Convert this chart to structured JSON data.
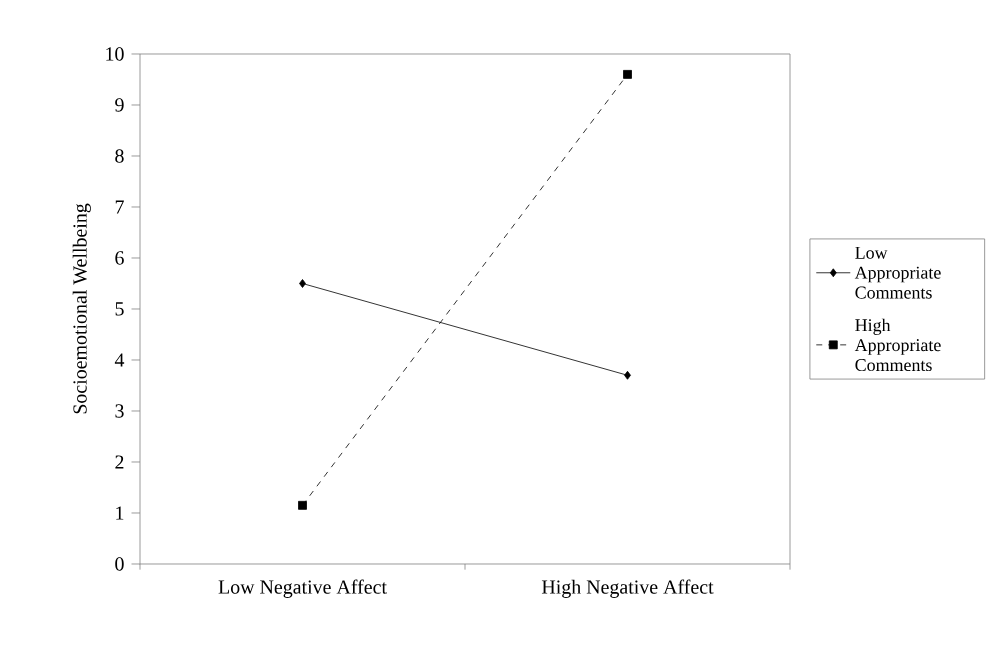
{
  "chart_data": {
    "type": "line",
    "ylabel": "Socioemotional Wellbeing",
    "categories": [
      "Low Negative Affect",
      "High Negative Affect"
    ],
    "series": [
      {
        "name": "Low Appropriate Comments",
        "color": "#000000",
        "values": [
          5.5,
          3.7
        ],
        "marker": "diamond",
        "line_style": "solid"
      },
      {
        "name": "High Appropriate Comments",
        "color": "#000000",
        "values": [
          1.15,
          9.6
        ],
        "marker": "square",
        "line_style": "dashed"
      }
    ],
    "ylim": [
      0,
      10
    ],
    "yticks": [
      0,
      1,
      2,
      3,
      4,
      5,
      6,
      7,
      8,
      9,
      10
    ],
    "legend": "right",
    "grid": false
  }
}
